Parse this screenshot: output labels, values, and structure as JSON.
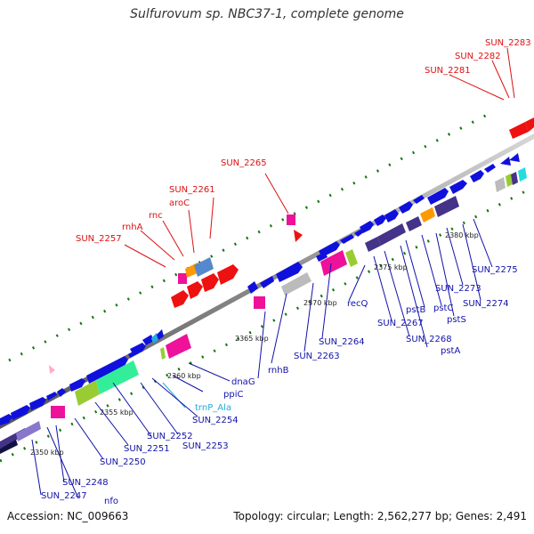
{
  "title": "Sulfurovum sp. NBC37-1, complete genome",
  "footer": {
    "accession": "Accession: NC_009663",
    "summary": "Topology: circular; Length: 2,562,277 bp; Genes: 2,491"
  },
  "colors": {
    "backbone": "#888888",
    "label_red": "#dd1111",
    "label_blue": "#1111aa",
    "label_cyan": "#22aadd",
    "gene_blue": "#1010dd",
    "gene_red": "#ee1111",
    "gene_magenta": "#ee1199",
    "gene_purple": "#443388",
    "gene_lavender": "#8877cc",
    "gene_green": "#33ee99",
    "gene_olive": "#99cc33",
    "gene_orange": "#ff9900",
    "gene_steel": "#5588cc",
    "gene_gray": "#bbbbbb",
    "gene_cyan": "#22dddd",
    "tick_green": "#117711"
  },
  "scale_labels": [
    {
      "id": "kbp-2350",
      "text": "2350 kbp"
    },
    {
      "id": "kbp-2355",
      "text": "2355 kbp"
    },
    {
      "id": "kbp-2360",
      "text": "2360 kbp"
    },
    {
      "id": "kbp-2365",
      "text": "2365 kbp"
    },
    {
      "id": "kbp-2370",
      "text": "2370 kbp"
    },
    {
      "id": "kbp-2375",
      "text": "2375 kbp"
    },
    {
      "id": "kbp-2380",
      "text": "2380 kbp"
    }
  ],
  "gene_labels_top": [
    {
      "id": "sun-2283",
      "text": "SUN_2283"
    },
    {
      "id": "sun-2282",
      "text": "SUN_2282"
    },
    {
      "id": "sun-2281",
      "text": "SUN_2281"
    },
    {
      "id": "sun-2265",
      "text": "SUN_2265"
    },
    {
      "id": "sun-2261",
      "text": "SUN_2261"
    },
    {
      "id": "aroc",
      "text": "aroC"
    },
    {
      "id": "rnc",
      "text": "rnc"
    },
    {
      "id": "rnha",
      "text": "rnhA"
    },
    {
      "id": "sun-2257",
      "text": "SUN_2257"
    }
  ],
  "gene_labels_bottom": [
    {
      "id": "sun-2275",
      "text": "SUN_2275"
    },
    {
      "id": "sun-2274",
      "text": "SUN_2274"
    },
    {
      "id": "sun-2273",
      "text": "SUN_2273"
    },
    {
      "id": "psts",
      "text": "pstS"
    },
    {
      "id": "pstc",
      "text": "pstC"
    },
    {
      "id": "pstb",
      "text": "pstB"
    },
    {
      "id": "psta",
      "text": "pstA"
    },
    {
      "id": "sun-2268",
      "text": "SUN_2268"
    },
    {
      "id": "sun-2267",
      "text": "SUN_2267"
    },
    {
      "id": "recq",
      "text": "recQ"
    },
    {
      "id": "sun-2264",
      "text": "SUN_2264"
    },
    {
      "id": "sun-2263",
      "text": "SUN_2263"
    },
    {
      "id": "rnhb",
      "text": "rnhB"
    },
    {
      "id": "dnag",
      "text": "dnaG"
    },
    {
      "id": "ppic",
      "text": "ppiC"
    },
    {
      "id": "trnp-ala",
      "text": "trnP_Ala"
    },
    {
      "id": "sun-2254",
      "text": "SUN_2254"
    },
    {
      "id": "sun-2253",
      "text": "SUN_2253"
    },
    {
      "id": "sun-2252",
      "text": "SUN_2252"
    },
    {
      "id": "sun-2251",
      "text": "SUN_2251"
    },
    {
      "id": "sun-2250",
      "text": "SUN_2250"
    },
    {
      "id": "sun-2248",
      "text": "SUN_2248"
    },
    {
      "id": "nfo",
      "text": "nfo"
    },
    {
      "id": "sun-2247",
      "text": "SUN_2247"
    }
  ]
}
